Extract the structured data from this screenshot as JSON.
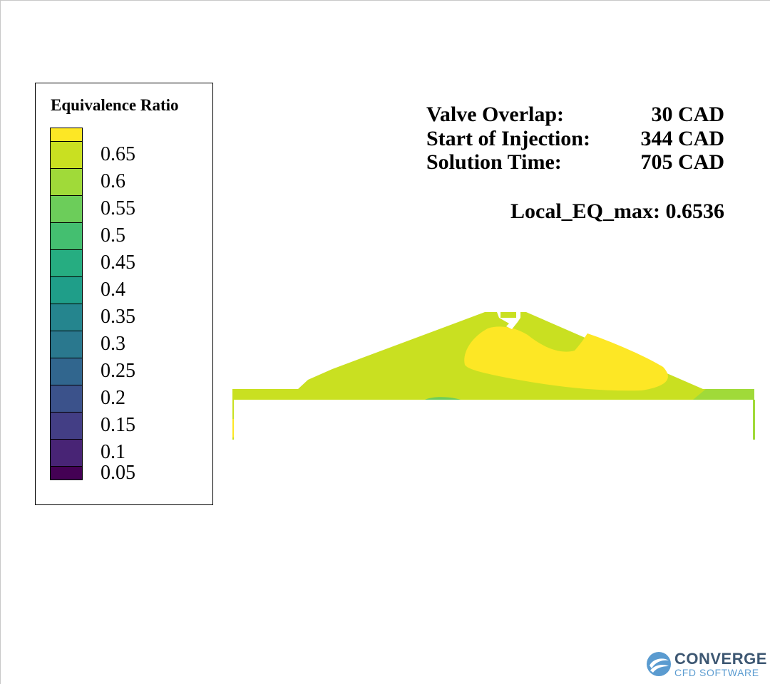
{
  "legend": {
    "title": "Equivalence Ratio",
    "levels": [
      {
        "label": "",
        "color": "#fde725"
      },
      {
        "label": "0.65",
        "color": "#c9e021"
      },
      {
        "label": "0.6",
        "color": "#a0da39"
      },
      {
        "label": "0.55",
        "color": "#6ccd5a"
      },
      {
        "label": "0.5",
        "color": "#44bf70"
      },
      {
        "label": "0.45",
        "color": "#26ad81"
      },
      {
        "label": "0.4",
        "color": "#1f9e89"
      },
      {
        "label": "0.35",
        "color": "#25858e"
      },
      {
        "label": "0.3",
        "color": "#2a788e"
      },
      {
        "label": "0.25",
        "color": "#31668e"
      },
      {
        "label": "0.2",
        "color": "#3b528b"
      },
      {
        "label": "0.15",
        "color": "#433e85"
      },
      {
        "label": "0.1",
        "color": "#482475"
      },
      {
        "label": "0.05",
        "color": "#440154"
      }
    ]
  },
  "info": {
    "valve_overlap_label": "Valve Overlap:",
    "valve_overlap_value": "30 CAD",
    "soi_label": "Start of Injection:",
    "soi_value": "344 CAD",
    "solution_time_label": "Solution Time:",
    "solution_time_value": "705 CAD",
    "local_eq_max": "Local_EQ_max: 0.6536"
  },
  "colors": {
    "base_region": "#c9e021",
    "rich_region": "#fde725",
    "lean_region": "#a0da39",
    "leaner_region": "#6ccd5a"
  },
  "logo": {
    "word": "CONVERGE",
    "sub": "CFD SOFTWARE"
  }
}
